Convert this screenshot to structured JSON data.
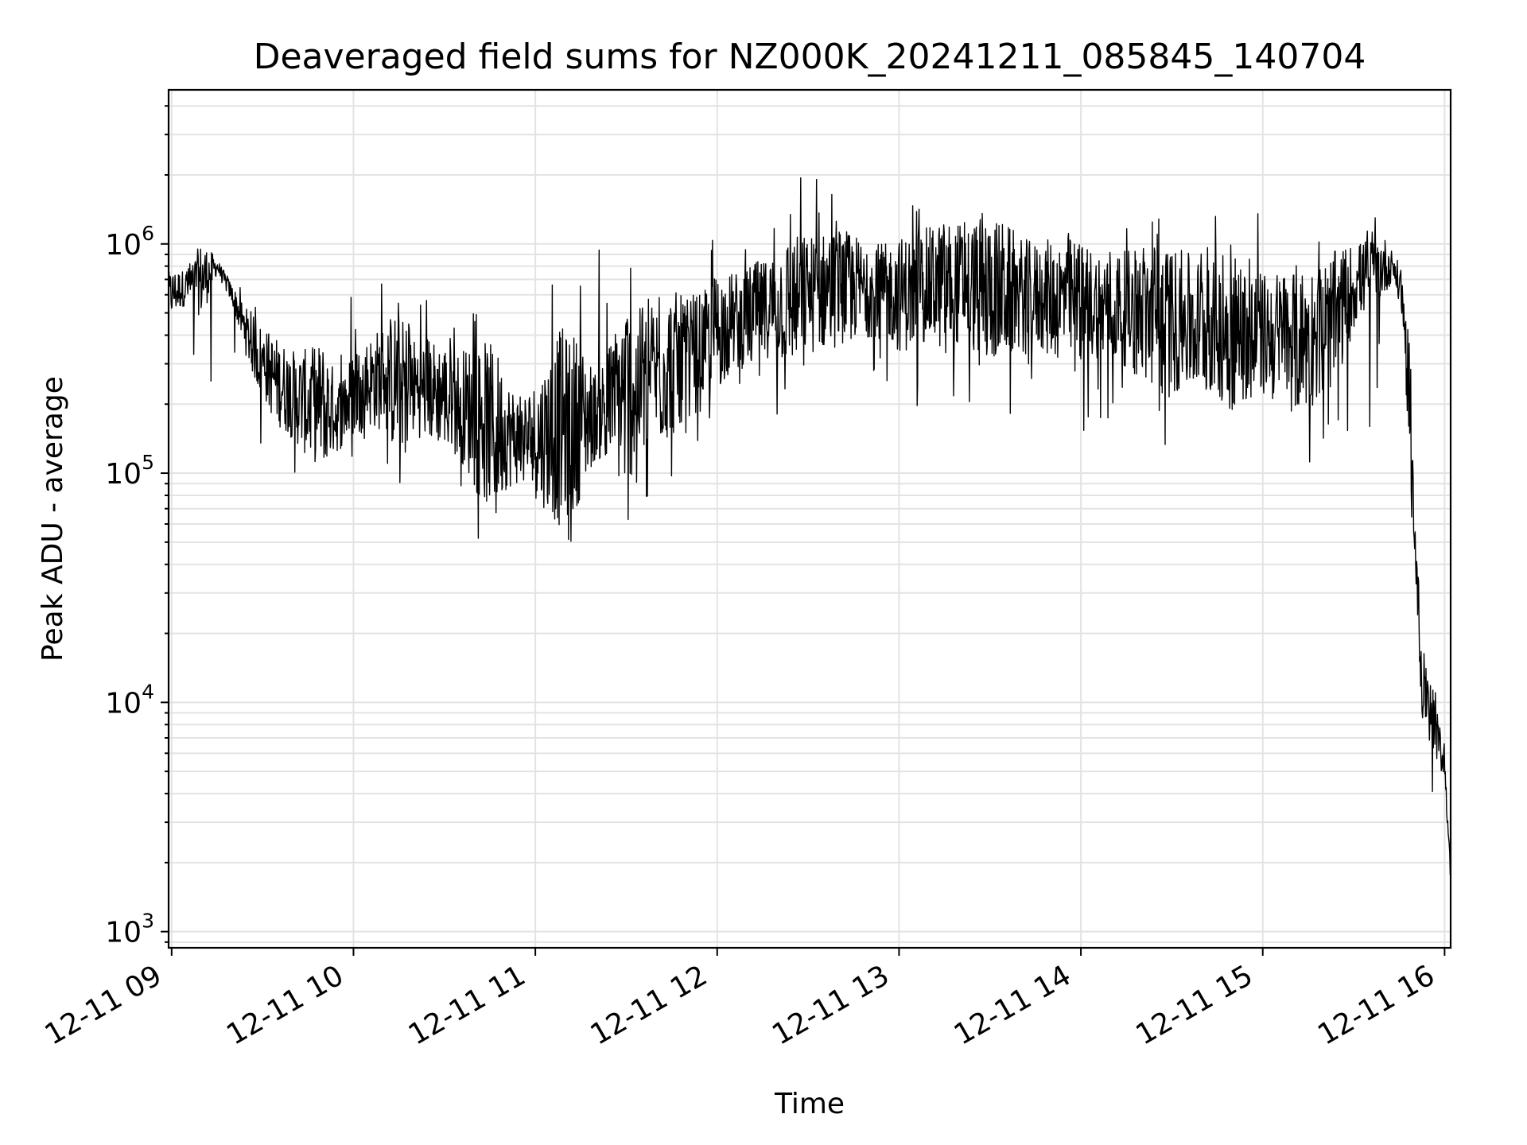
{
  "chart_data": {
    "type": "line",
    "title": "Deaveraged field sums for NZ000K_20241211_085845_140704",
    "xlabel": "Time",
    "ylabel": "Peak ADU - average",
    "yscale": "log",
    "grid": true,
    "xlim": [
      "2024-12-11 08:59",
      "2024-12-11 16:02"
    ],
    "ylim": [
      850,
      4700000
    ],
    "x_ticks": [
      {
        "value": "2024-12-11 09:00",
        "label": "12-11 09"
      },
      {
        "value": "2024-12-11 10:00",
        "label": "12-11 10"
      },
      {
        "value": "2024-12-11 11:00",
        "label": "12-11 11"
      },
      {
        "value": "2024-12-11 12:00",
        "label": "12-11 12"
      },
      {
        "value": "2024-12-11 13:00",
        "label": "12-11 13"
      },
      {
        "value": "2024-12-11 14:00",
        "label": "12-11 14"
      },
      {
        "value": "2024-12-11 15:00",
        "label": "12-11 15"
      },
      {
        "value": "2024-12-11 16:00",
        "label": "12-11 16"
      }
    ],
    "y_ticks": [
      {
        "value": 1000,
        "base": "10",
        "exp": "3"
      },
      {
        "value": 10000,
        "base": "10",
        "exp": "4"
      },
      {
        "value": 100000,
        "base": "10",
        "exp": "5"
      },
      {
        "value": 1000000,
        "base": "10",
        "exp": "6"
      }
    ],
    "series": [
      {
        "color": "#000000",
        "x": [
          "2024-12-11 08:59",
          "2024-12-11 09:05",
          "2024-12-11 09:10",
          "2024-12-11 09:15",
          "2024-12-11 09:20",
          "2024-12-11 09:25",
          "2024-12-11 09:30",
          "2024-12-11 09:35",
          "2024-12-11 09:40",
          "2024-12-11 09:45",
          "2024-12-11 09:50",
          "2024-12-11 09:55",
          "2024-12-11 10:00",
          "2024-12-11 10:05",
          "2024-12-11 10:10",
          "2024-12-11 10:15",
          "2024-12-11 10:20",
          "2024-12-11 10:25",
          "2024-12-11 10:30",
          "2024-12-11 10:35",
          "2024-12-11 10:40",
          "2024-12-11 10:45",
          "2024-12-11 10:50",
          "2024-12-11 10:55",
          "2024-12-11 11:00",
          "2024-12-11 11:05",
          "2024-12-11 11:10",
          "2024-12-11 11:15",
          "2024-12-11 11:20",
          "2024-12-11 11:25",
          "2024-12-11 11:30",
          "2024-12-11 11:35",
          "2024-12-11 11:40",
          "2024-12-11 11:45",
          "2024-12-11 11:50",
          "2024-12-11 11:55",
          "2024-12-11 12:00",
          "2024-12-11 12:05",
          "2024-12-11 12:10",
          "2024-12-11 12:15",
          "2024-12-11 12:20",
          "2024-12-11 12:25",
          "2024-12-11 12:30",
          "2024-12-11 12:35",
          "2024-12-11 12:40",
          "2024-12-11 12:45",
          "2024-12-11 12:50",
          "2024-12-11 12:55",
          "2024-12-11 13:00",
          "2024-12-11 13:05",
          "2024-12-11 13:10",
          "2024-12-11 13:15",
          "2024-12-11 13:20",
          "2024-12-11 13:25",
          "2024-12-11 13:30",
          "2024-12-11 13:35",
          "2024-12-11 13:40",
          "2024-12-11 13:45",
          "2024-12-11 13:50",
          "2024-12-11 13:55",
          "2024-12-11 14:00",
          "2024-12-11 14:05",
          "2024-12-11 14:10",
          "2024-12-11 14:15",
          "2024-12-11 14:20",
          "2024-12-11 14:25",
          "2024-12-11 14:30",
          "2024-12-11 14:35",
          "2024-12-11 14:40",
          "2024-12-11 14:45",
          "2024-12-11 14:50",
          "2024-12-11 14:55",
          "2024-12-11 15:00",
          "2024-12-11 15:05",
          "2024-12-11 15:10",
          "2024-12-11 15:15",
          "2024-12-11 15:20",
          "2024-12-11 15:25",
          "2024-12-11 15:30",
          "2024-12-11 15:35",
          "2024-12-11 15:40",
          "2024-12-11 15:43",
          "2024-12-11 15:46",
          "2024-12-11 15:48",
          "2024-12-11 15:50",
          "2024-12-11 15:52",
          "2024-12-11 15:54",
          "2024-12-11 15:56",
          "2024-12-11 15:58",
          "2024-12-11 16:00",
          "2024-12-11 16:01",
          "2024-12-11 16:02"
        ],
        "y": [
          600000,
          650000,
          700000,
          800000,
          600000,
          400000,
          300000,
          250000,
          220000,
          200000,
          200000,
          180000,
          220000,
          250000,
          260000,
          250000,
          240000,
          230000,
          220000,
          200000,
          180000,
          160000,
          150000,
          140000,
          140000,
          150000,
          160000,
          170000,
          180000,
          200000,
          220000,
          250000,
          270000,
          300000,
          320000,
          350000,
          420000,
          450000,
          480000,
          520000,
          550000,
          570000,
          600000,
          620000,
          650000,
          650000,
          640000,
          630000,
          600000,
          620000,
          650000,
          660000,
          670000,
          650000,
          640000,
          620000,
          600000,
          590000,
          580000,
          570000,
          560000,
          550000,
          540000,
          520000,
          500000,
          480000,
          460000,
          450000,
          440000,
          430000,
          420000,
          410000,
          400000,
          390000,
          380000,
          390000,
          420000,
          500000,
          650000,
          750000,
          800000,
          800000,
          600000,
          250000,
          60000,
          15000,
          10000,
          8000,
          6500,
          5500,
          3000,
          1700
        ],
        "y_envelope_max": [
          900000,
          850000,
          1300000,
          900000,
          700000,
          600000,
          550000,
          500000,
          450000,
          480000,
          550000,
          600000,
          650000,
          750000,
          900000,
          700000,
          650000,
          600000,
          650000,
          700000,
          650000,
          600000,
          500000,
          550000,
          700000,
          1150000,
          700000,
          800000,
          900000,
          1250000,
          1000000,
          800000,
          900000,
          1000000,
          800000,
          1000000,
          1500000,
          1300000,
          1200000,
          1100000,
          1400000,
          1700000,
          2800000,
          3200000,
          1700000,
          1500000,
          1400000,
          1300000,
          1500000,
          1600000,
          1700000,
          1900000,
          1800000,
          1900000,
          2000000,
          1900000,
          1500000,
          1400000,
          1500000,
          1600000,
          1500000,
          1300000,
          1400000,
          1300000,
          1600000,
          2300000,
          1500000,
          1400000,
          1300000,
          1500000,
          2500000,
          1400000,
          1600000,
          1500000,
          1300000,
          1200000,
          1300000,
          1400000,
          1300000,
          1300000,
          1300000,
          1000000,
          900000,
          700000,
          80000,
          35000,
          18000,
          15000,
          10000,
          6500,
          3500,
          2000
        ],
        "y_envelope_min": [
          420000,
          380000,
          250000,
          200000,
          120000,
          100000,
          95000,
          90000,
          85000,
          60000,
          75000,
          100000,
          110000,
          120000,
          110000,
          70000,
          110000,
          100000,
          95000,
          85000,
          55000,
          32000,
          60000,
          70000,
          55000,
          40000,
          28000,
          50000,
          90000,
          70000,
          42000,
          60000,
          75000,
          80000,
          100000,
          150000,
          160000,
          200000,
          220000,
          200000,
          120000,
          200000,
          230000,
          240000,
          250000,
          200000,
          230000,
          180000,
          120000,
          180000,
          200000,
          220000,
          190000,
          170000,
          180000,
          170000,
          190000,
          180000,
          160000,
          170000,
          150000,
          140000,
          150000,
          180000,
          160000,
          140000,
          120000,
          130000,
          140000,
          150000,
          110000,
          140000,
          150000,
          130000,
          120000,
          90000,
          120000,
          160000,
          140000,
          130000,
          210000,
          400000,
          300000,
          120000,
          40000,
          7000,
          5000,
          4000,
          4500,
          4000,
          2500,
          1000
        ]
      }
    ]
  }
}
